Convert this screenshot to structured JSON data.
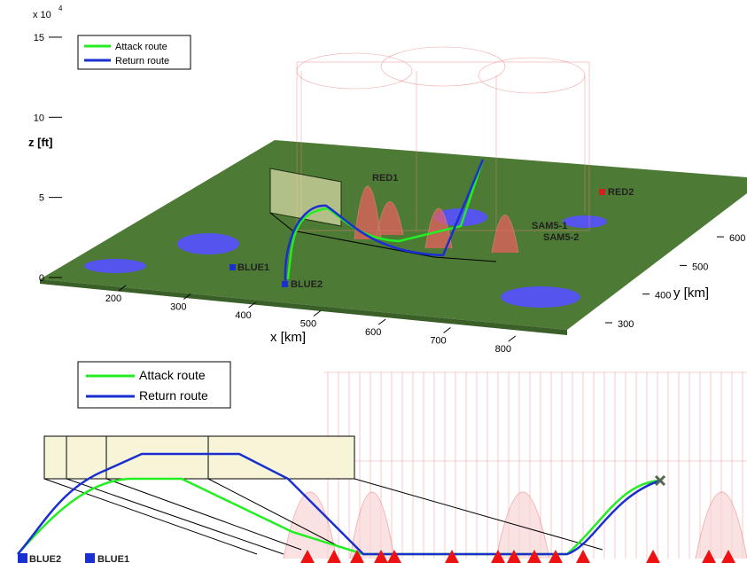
{
  "chart_data": [
    {
      "type": "surface3d",
      "z_label": "z [ft]",
      "z_multiplier": "x 10",
      "z_multiplier_exp": "4",
      "zticks": [
        0,
        5,
        10,
        15
      ],
      "zlim": [
        0,
        15
      ],
      "x_label": "x [km]",
      "xticks": [
        200,
        300,
        400,
        500,
        600,
        700,
        800
      ],
      "y_label": "y [km]",
      "yticks": [
        300,
        400,
        500,
        600
      ],
      "series": [
        {
          "name": "Attack route",
          "color": "#22ee22"
        },
        {
          "name": "Return route",
          "color": "#1a2fd0"
        }
      ],
      "sites": [
        "BLUE1",
        "BLUE2",
        "RED1",
        "RED2",
        "SAM5-1",
        "SAM5-2"
      ]
    },
    {
      "type": "side-view",
      "series": [
        {
          "name": "Attack route",
          "color": "#22ee22"
        },
        {
          "name": "Return route",
          "color": "#1a2fd0"
        }
      ],
      "sites": [
        "BLUE2",
        "BLUE1"
      ]
    }
  ]
}
